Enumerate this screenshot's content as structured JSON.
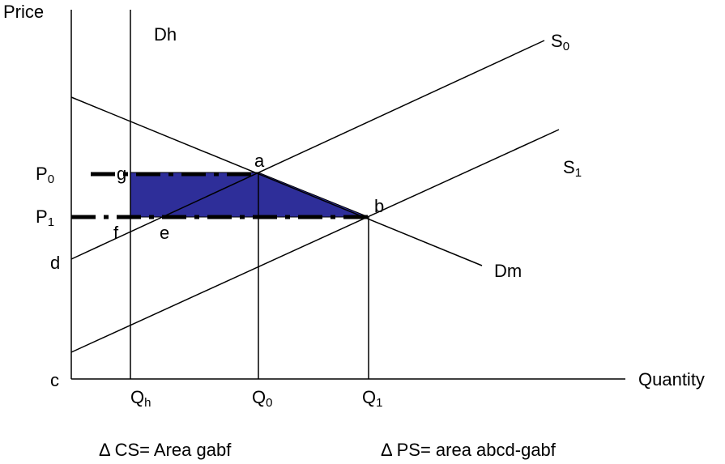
{
  "axes": {
    "y_label": "Price",
    "x_label": "Quantity"
  },
  "curves": {
    "dh_label": "Dh",
    "dm_label": "Dm",
    "s0_label_main": "S",
    "s0_label_sub": "0",
    "s1_label_main": "S",
    "s1_label_sub": "1"
  },
  "price_labels": {
    "p0_main": "P",
    "p0_sub": "0",
    "p1_main": "P",
    "p1_sub": "1",
    "d": "d",
    "c": "c"
  },
  "quantity_labels": {
    "qh_main": "Q",
    "qh_sub": "h",
    "q0_main": "Q",
    "q0_sub": "0",
    "q1_main": "Q",
    "q1_sub": "1"
  },
  "points": {
    "a": "a",
    "b": "b",
    "e": "e",
    "f": "f",
    "g": "g"
  },
  "captions": {
    "cs": "Δ CS= Area gabf",
    "ps": "Δ PS= area abcd-gabf"
  },
  "colors": {
    "shaded_area": "#2e2e99",
    "lines": "#000000"
  }
}
